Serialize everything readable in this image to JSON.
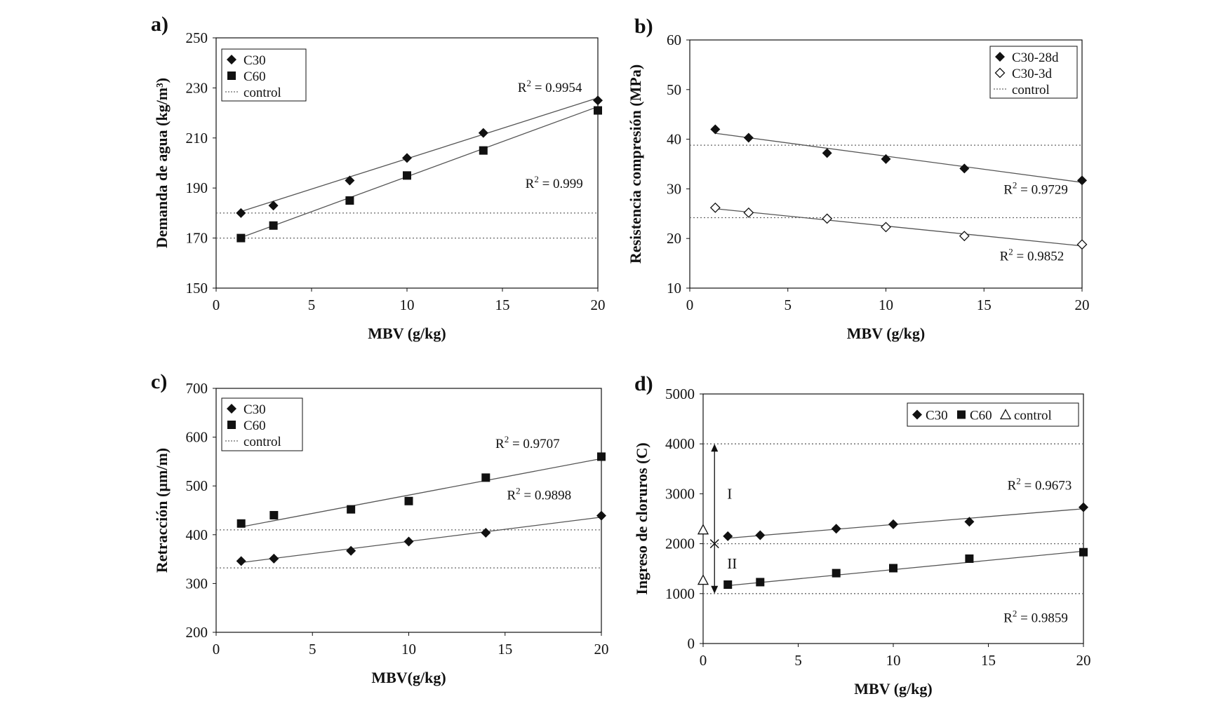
{
  "colors": {
    "ink": "#111111",
    "fit_line": "#555555",
    "grid": "#666666",
    "background": "#ffffff"
  },
  "chart_data": [
    {
      "id": "a",
      "panel_label": "a)",
      "type": "scatter",
      "xlabel": "MBV (g/kg)",
      "ylabel": "Demanda de agua (kg/m³)",
      "xlim": [
        0,
        20
      ],
      "ylim": [
        150,
        250
      ],
      "xticks": [
        0,
        5,
        10,
        15,
        20
      ],
      "yticks": [
        150,
        170,
        190,
        210,
        230,
        250
      ],
      "legend": {
        "position": "top-left",
        "entries": [
          {
            "marker": "diamond",
            "label": "C30"
          },
          {
            "marker": "square",
            "label": "C60"
          },
          {
            "marker": "dotted-line",
            "label": "control"
          }
        ]
      },
      "series": [
        {
          "name": "C30",
          "marker": "diamond",
          "x": [
            1.3,
            3,
            7,
            10,
            14,
            20
          ],
          "y": [
            180,
            183,
            193,
            202,
            212,
            225
          ],
          "fit": {
            "from": [
              1.3,
              180.6
            ],
            "to": [
              20,
              226
            ]
          },
          "r2": "R² = 0.9954",
          "r2_at": [
            15.8,
            228.5
          ]
        },
        {
          "name": "C60",
          "marker": "square",
          "x": [
            1.3,
            3,
            7,
            10,
            14,
            20
          ],
          "y": [
            170,
            175,
            185,
            195,
            205,
            221
          ],
          "fit": {
            "from": [
              1.3,
              170.2
            ],
            "to": [
              20,
              222.5
            ]
          },
          "r2": "R² = 0.999",
          "r2_at": [
            16.2,
            190
          ]
        }
      ],
      "control_lines": [
        180,
        170
      ]
    },
    {
      "id": "b",
      "panel_label": "b)",
      "type": "scatter",
      "xlabel": "MBV (g/kg)",
      "ylabel": "Resistencia compresión (MPa)",
      "xlim": [
        0,
        20
      ],
      "ylim": [
        10,
        60
      ],
      "xticks": [
        0,
        5,
        10,
        15,
        20
      ],
      "yticks": [
        10,
        20,
        30,
        40,
        50,
        60
      ],
      "legend": {
        "position": "top-right",
        "entries": [
          {
            "marker": "diamond",
            "label": "C30-28d"
          },
          {
            "marker": "open-diamond",
            "label": "C30-3d"
          },
          {
            "marker": "dotted-line",
            "label": "control"
          }
        ]
      },
      "series": [
        {
          "name": "C30-28d",
          "marker": "diamond",
          "x": [
            1.3,
            3,
            7,
            10,
            14,
            20
          ],
          "y": [
            42,
            40.3,
            37.2,
            36,
            34.1,
            31.7
          ],
          "fit": {
            "from": [
              1.3,
              41.2
            ],
            "to": [
              20,
              31.3
            ]
          },
          "r2": "R² = 0.9729",
          "r2_at": [
            16,
            29
          ]
        },
        {
          "name": "C30-3d",
          "marker": "open-diamond",
          "x": [
            1.3,
            3,
            7,
            10,
            14,
            20
          ],
          "y": [
            26.2,
            25.2,
            24,
            22.3,
            20.5,
            18.8
          ],
          "fit": {
            "from": [
              1.3,
              26
            ],
            "to": [
              20,
              18.5
            ]
          },
          "r2": "R² = 0.9852",
          "r2_at": [
            15.8,
            15.6
          ]
        }
      ],
      "control_lines": [
        38.8,
        24.2
      ]
    },
    {
      "id": "c",
      "panel_label": "c)",
      "type": "scatter",
      "xlabel": "MBV(g/kg)",
      "ylabel": "Retracción (µm/m)",
      "xlim": [
        0,
        20
      ],
      "ylim": [
        200,
        700
      ],
      "xticks": [
        0,
        5,
        10,
        15,
        20
      ],
      "yticks": [
        200,
        300,
        400,
        500,
        600,
        700
      ],
      "legend": {
        "position": "top-left",
        "entries": [
          {
            "marker": "diamond",
            "label": "C30"
          },
          {
            "marker": "square",
            "label": "C60"
          },
          {
            "marker": "dotted-line",
            "label": "control"
          }
        ]
      },
      "series": [
        {
          "name": "C30",
          "marker": "diamond",
          "x": [
            1.3,
            3,
            7,
            10,
            14,
            20
          ],
          "y": [
            346,
            351,
            367,
            386,
            404,
            439
          ],
          "fit": {
            "from": [
              1.3,
              343
            ],
            "to": [
              20,
              436
            ]
          },
          "r2": "R² = 0.9898",
          "r2_at": [
            15.1,
            472
          ]
        },
        {
          "name": "C60",
          "marker": "square",
          "x": [
            1.3,
            3,
            7,
            10,
            14,
            20
          ],
          "y": [
            423,
            440,
            452,
            469,
            517,
            560
          ],
          "fit": {
            "from": [
              1.3,
              416
            ],
            "to": [
              20,
              556
            ]
          },
          "r2": "R² = 0.9707",
          "r2_at": [
            14.5,
            578
          ]
        }
      ],
      "control_lines": [
        410,
        332
      ]
    },
    {
      "id": "d",
      "panel_label": "d)",
      "type": "scatter",
      "xlabel": "MBV (g/kg)",
      "ylabel": "Ingreso de cloruros (C)",
      "xlim": [
        0,
        20
      ],
      "ylim": [
        0,
        5000
      ],
      "xticks": [
        0,
        5,
        10,
        15,
        20
      ],
      "yticks": [
        0,
        1000,
        2000,
        3000,
        4000,
        5000
      ],
      "legend": {
        "position": "top-right",
        "entries": [
          {
            "marker": "diamond",
            "label": "C30"
          },
          {
            "marker": "square",
            "label": "C60"
          },
          {
            "marker": "open-triangle",
            "label": "control"
          }
        ]
      },
      "series": [
        {
          "name": "C30",
          "marker": "diamond",
          "x": [
            1.3,
            3,
            7,
            10,
            14,
            20
          ],
          "y": [
            2150,
            2170,
            2300,
            2390,
            2440,
            2730
          ],
          "fit": {
            "from": [
              1.3,
              2110
            ],
            "to": [
              20,
              2700
            ]
          },
          "r2": "R² = 0.9673",
          "r2_at": [
            16,
            3080
          ]
        },
        {
          "name": "C60",
          "marker": "square",
          "x": [
            1.3,
            3,
            7,
            10,
            14,
            20
          ],
          "y": [
            1180,
            1230,
            1410,
            1510,
            1700,
            1830
          ],
          "fit": {
            "from": [
              1.3,
              1160
            ],
            "to": [
              20,
              1850
            ]
          },
          "r2": "R² = 0.9859",
          "r2_at": [
            15.8,
            430
          ]
        },
        {
          "name": "control",
          "marker": "open-triangle",
          "x": [
            0,
            0
          ],
          "y": [
            2280,
            1270
          ]
        }
      ],
      "control_lines": [
        4000,
        2000,
        1000
      ],
      "range_annotation": {
        "x": 0.6,
        "from": 1000,
        "to": 4000,
        "mid": 2000,
        "upper_label": "I",
        "lower_label": "II",
        "upper_label_at": 3000,
        "lower_label_at": 1600
      }
    }
  ]
}
